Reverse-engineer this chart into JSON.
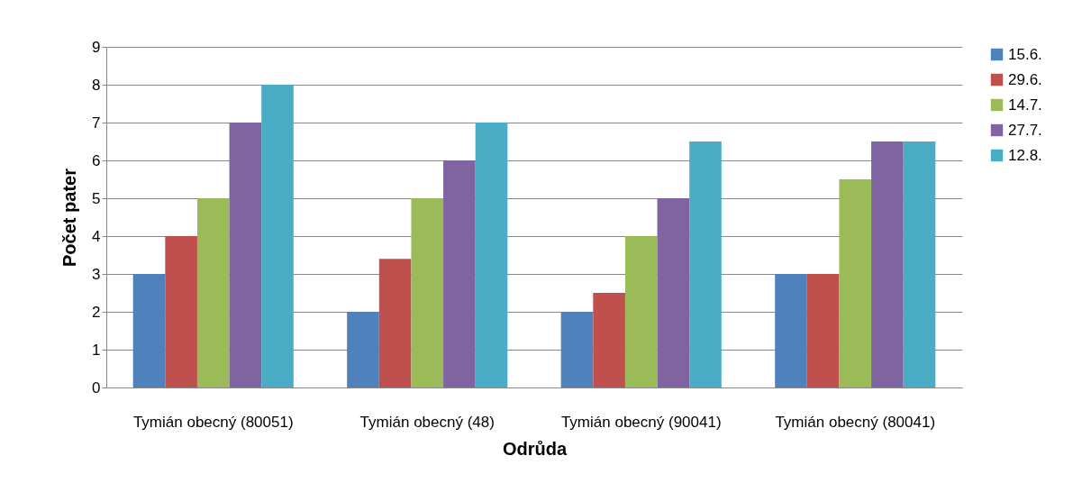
{
  "chart_data": {
    "type": "bar",
    "xlabel": "Odrůda",
    "ylabel": "Počet pater",
    "categories": [
      "Tymián obecný (80051)",
      "Tymián obecný (48)",
      "Tymián obecný (90041)",
      "Tymián obecný (80041)"
    ],
    "series": [
      {
        "name": "15.6.",
        "color": "#4f81bd",
        "values": [
          3,
          2,
          2,
          3
        ]
      },
      {
        "name": "29.6.",
        "color": "#c0504d",
        "values": [
          4,
          3.4,
          2.5,
          3
        ]
      },
      {
        "name": "14.7.",
        "color": "#9bbb59",
        "values": [
          5,
          5,
          4,
          5.5
        ]
      },
      {
        "name": "27.7.",
        "color": "#8064a2",
        "values": [
          7,
          6,
          5,
          6.5
        ]
      },
      {
        "name": "12.8.",
        "color": "#4bacc6",
        "values": [
          8,
          7,
          6.5,
          6.5
        ]
      }
    ],
    "ylim": [
      0,
      9
    ],
    "yticks": [
      0,
      1,
      2,
      3,
      4,
      5,
      6,
      7,
      8,
      9
    ],
    "grid": "y",
    "legend": "right"
  }
}
